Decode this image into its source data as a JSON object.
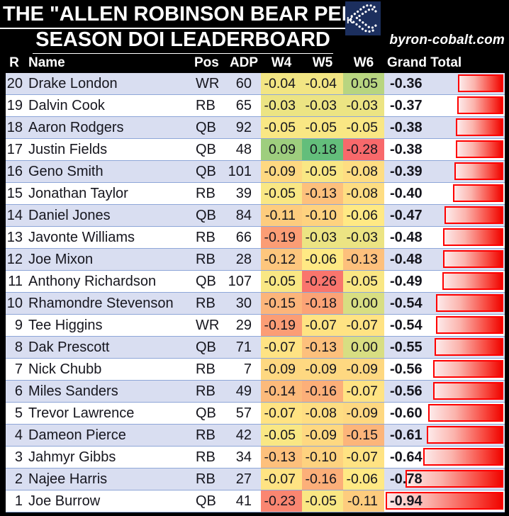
{
  "header": {
    "title_line1": "THE \"ALLEN ROBINSON BEAR PELT\"",
    "title_line2": "SEASON DOI LEADERBOARD",
    "website": "byron-cobalt.com",
    "logo_icon": "kc-dotted-diamond-logo"
  },
  "colors": {
    "background": "#000000",
    "header_text": "#ffffff",
    "row_stripe": "#d9def1",
    "row_white": "#ffffff",
    "separator": "#8ea6d8",
    "text": "#16161e",
    "bar_border": "#ff0000",
    "logo_bg": "#1c2f5e"
  },
  "chart_data": {
    "type": "table",
    "title": "THE \"ALLEN ROBINSON BEAR PELT\" SEASON DOI LEADERBOARD",
    "columns": [
      "R",
      "Name",
      "Pos",
      "ADP",
      "W4",
      "W5",
      "W6",
      "Grand Total"
    ],
    "heatmap": {
      "applies_to": [
        "w4",
        "w5",
        "w6"
      ],
      "min": -0.28,
      "mid": -0.06,
      "max": 0.18,
      "min_color": "#F8696B",
      "mid_color": "#FFE984",
      "max_color": "#63BE7B"
    },
    "databar": {
      "applies_to": "grand_total",
      "max_abs": 0.94,
      "border": "#ff0000",
      "fill": "red gradient, right-aligned"
    },
    "rows": [
      {
        "rank": 20,
        "name": "Drake London",
        "pos": "WR",
        "adp": 60,
        "w4": -0.04,
        "w5": -0.04,
        "w6": 0.05,
        "grand_total": -0.36
      },
      {
        "rank": 19,
        "name": "Dalvin Cook",
        "pos": "RB",
        "adp": 65,
        "w4": -0.03,
        "w5": -0.03,
        "w6": -0.03,
        "grand_total": -0.37
      },
      {
        "rank": 18,
        "name": "Aaron Rodgers",
        "pos": "QB",
        "adp": 92,
        "w4": -0.05,
        "w5": -0.05,
        "w6": -0.05,
        "grand_total": -0.38
      },
      {
        "rank": 17,
        "name": "Justin Fields",
        "pos": "QB",
        "adp": 48,
        "w4": 0.09,
        "w5": 0.18,
        "w6": -0.28,
        "grand_total": -0.38
      },
      {
        "rank": 16,
        "name": "Geno Smith",
        "pos": "QB",
        "adp": 101,
        "w4": -0.09,
        "w5": -0.05,
        "w6": -0.08,
        "grand_total": -0.39
      },
      {
        "rank": 15,
        "name": "Jonathan Taylor",
        "pos": "RB",
        "adp": 39,
        "w4": -0.05,
        "w5": -0.13,
        "w6": -0.08,
        "grand_total": -0.4
      },
      {
        "rank": 14,
        "name": "Daniel Jones",
        "pos": "QB",
        "adp": 84,
        "w4": -0.11,
        "w5": -0.1,
        "w6": -0.06,
        "grand_total": -0.47
      },
      {
        "rank": 13,
        "name": "Javonte Williams",
        "pos": "RB",
        "adp": 66,
        "w4": -0.19,
        "w5": -0.03,
        "w6": -0.03,
        "grand_total": -0.48
      },
      {
        "rank": 12,
        "name": "Joe Mixon",
        "pos": "RB",
        "adp": 28,
        "w4": -0.12,
        "w5": -0.06,
        "w6": -0.13,
        "grand_total": -0.48
      },
      {
        "rank": 11,
        "name": "Anthony Richardson",
        "pos": "QB",
        "adp": 107,
        "w4": -0.05,
        "w5": -0.26,
        "w6": -0.05,
        "grand_total": -0.49
      },
      {
        "rank": 10,
        "name": "Rhamondre Stevenson",
        "pos": "RB",
        "adp": 30,
        "w4": -0.15,
        "w5": -0.18,
        "w6": 0.0,
        "grand_total": -0.54
      },
      {
        "rank": 9,
        "name": "Tee Higgins",
        "pos": "WR",
        "adp": 29,
        "w4": -0.19,
        "w5": -0.07,
        "w6": -0.07,
        "grand_total": -0.54
      },
      {
        "rank": 8,
        "name": "Dak Prescott",
        "pos": "QB",
        "adp": 71,
        "w4": -0.07,
        "w5": -0.13,
        "w6": 0.0,
        "grand_total": -0.55
      },
      {
        "rank": 7,
        "name": "Nick Chubb",
        "pos": "RB",
        "adp": 7,
        "w4": -0.09,
        "w5": -0.09,
        "w6": -0.09,
        "grand_total": -0.56
      },
      {
        "rank": 6,
        "name": "Miles Sanders",
        "pos": "RB",
        "adp": 49,
        "w4": -0.14,
        "w5": -0.16,
        "w6": -0.07,
        "grand_total": -0.56
      },
      {
        "rank": 5,
        "name": "Trevor Lawrence",
        "pos": "QB",
        "adp": 57,
        "w4": -0.07,
        "w5": -0.08,
        "w6": -0.09,
        "grand_total": -0.6
      },
      {
        "rank": 4,
        "name": "Dameon Pierce",
        "pos": "RB",
        "adp": 42,
        "w4": -0.05,
        "w5": -0.09,
        "w6": -0.15,
        "grand_total": -0.61
      },
      {
        "rank": 3,
        "name": "Jahmyr Gibbs",
        "pos": "RB",
        "adp": 34,
        "w4": -0.13,
        "w5": -0.1,
        "w6": -0.07,
        "grand_total": -0.64
      },
      {
        "rank": 2,
        "name": "Najee Harris",
        "pos": "RB",
        "adp": 27,
        "w4": -0.07,
        "w5": -0.16,
        "w6": -0.06,
        "grand_total": -0.78
      },
      {
        "rank": 1,
        "name": "Joe Burrow",
        "pos": "QB",
        "adp": 41,
        "w4": -0.23,
        "w5": -0.05,
        "w6": -0.11,
        "grand_total": -0.94
      }
    ]
  }
}
